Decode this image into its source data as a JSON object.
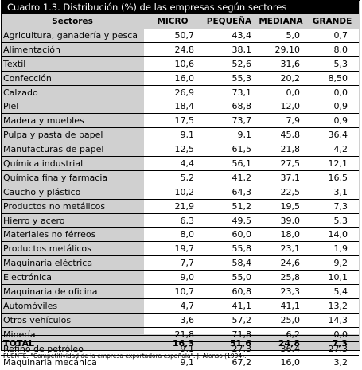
{
  "title": "Cuadro 1.3. Distribución (%) de las empresas según sectores",
  "headers": {
    "sector": "Sectores",
    "micro": "MICRO",
    "pequena": "PEQUEÑA",
    "mediana": "MEDIANA",
    "grande": "GRANDE"
  },
  "rows": [
    {
      "sector": "Agricultura, ganadería y pesca",
      "micro": "50,7",
      "pequena": "43,4",
      "mediana": "5,0",
      "grande": "0,7"
    },
    {
      "sector": "Alimentación",
      "micro": "24,8",
      "pequena": "38,1",
      "mediana": "29,10",
      "grande": "8,0"
    },
    {
      "sector": "Textil",
      "micro": "10,6",
      "pequena": "52,6",
      "mediana": "31,6",
      "grande": "5,3"
    },
    {
      "sector": "Confección",
      "micro": "16,0",
      "pequena": "55,3",
      "mediana": "20,2",
      "grande": "8,50"
    },
    {
      "sector": "Calzado",
      "micro": "26,9",
      "pequena": "73,1",
      "mediana": "0,0",
      "grande": "0,0"
    },
    {
      "sector": "Piel",
      "micro": "18,4",
      "pequena": "68,8",
      "mediana": "12,0",
      "grande": "0,9"
    },
    {
      "sector": "Madera y muebles",
      "micro": "17,5",
      "pequena": "73,7",
      "mediana": "7,9",
      "grande": "0,9"
    },
    {
      "sector": "Pulpa y pasta de papel",
      "micro": "9,1",
      "pequena": "9,1",
      "mediana": "45,8",
      "grande": "36,4"
    },
    {
      "sector": "Manufacturas de papel",
      "micro": "12,5",
      "pequena": "61,5",
      "mediana": "21,8",
      "grande": "4,2"
    },
    {
      "sector": "Química industrial",
      "micro": "4,4",
      "pequena": "56,1",
      "mediana": "27,5",
      "grande": "12,1"
    },
    {
      "sector": "Química fina y farmacia",
      "micro": "5,2",
      "pequena": "41,2",
      "mediana": "37,1",
      "grande": "16,5"
    },
    {
      "sector": "Caucho y plástico",
      "micro": "10,2",
      "pequena": "64,3",
      "mediana": "22,5",
      "grande": "3,1"
    },
    {
      "sector": "Productos no metálicos",
      "micro": "21,9",
      "pequena": "51,2",
      "mediana": "19,5",
      "grande": "7,3"
    },
    {
      "sector": "Hierro y acero",
      "micro": "6,3",
      "pequena": "49,5",
      "mediana": "39,0",
      "grande": "5,3"
    },
    {
      "sector": "Materiales no férreos",
      "micro": "8,0",
      "pequena": "60,0",
      "mediana": "18,0",
      "grande": "14,0"
    },
    {
      "sector": "Productos metálicos",
      "micro": "19,7",
      "pequena": "55,8",
      "mediana": "23,1",
      "grande": "1,9"
    },
    {
      "sector": "Maquinaria eléctrica",
      "micro": "7,7",
      "pequena": "58,4",
      "mediana": "24,6",
      "grande": "9,2"
    },
    {
      "sector": "Electrónica",
      "micro": "9,0",
      "pequena": "55,0",
      "mediana": "25,8",
      "grande": "10,1"
    },
    {
      "sector": "Maquinaria de oficina",
      "micro": "10,7",
      "pequena": "60,8",
      "mediana": "23,3",
      "grande": "5,4"
    },
    {
      "sector": "Automóviles",
      "micro": "4,7",
      "pequena": "41,1",
      "mediana": "41,1",
      "grande": "13,2"
    },
    {
      "sector": "Otros vehículos",
      "micro": "3,6",
      "pequena": "57,2",
      "mediana": "25,0",
      "grande": "14,3"
    },
    {
      "sector": "Minería",
      "micro": "21,8",
      "pequena": "71,8",
      "mediana": "6,2",
      "grande": "0,0"
    },
    {
      "sector": "Refino de petróleo",
      "micro": "9,1",
      "pequena": "27,3",
      "mediana": "36,4",
      "grande": "27,3"
    },
    {
      "sector": "Maquinaria mecánica",
      "micro": "9,1",
      "pequena": "67,2",
      "mediana": "16,0",
      "grande": "3,2"
    }
  ],
  "total": {
    "label": "TOTAL",
    "micro": "16,3",
    "pequena": "51,6",
    "mediana": "24,8",
    "grande": "7,3"
  },
  "footnote": "FUENTE: \"Competitividad de la empresa exportadora española\". J. Alonso (1994)."
}
